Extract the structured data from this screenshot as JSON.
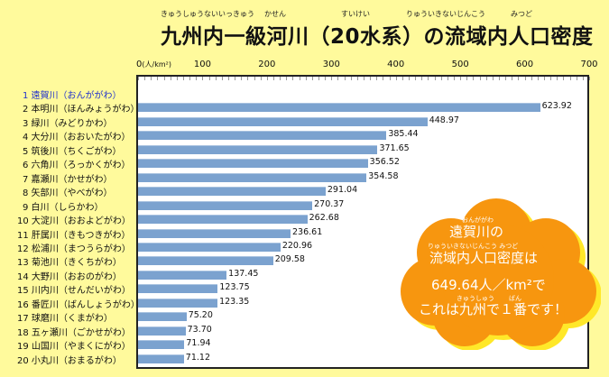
{
  "title": {
    "text": "九州内一級河川（20水系）の流域内人口密度",
    "ruby": [
      {
        "text": "きゅうしゅうないいっきゅう",
        "pos": "a"
      },
      {
        "text": "かせん",
        "pos": "b"
      },
      {
        "text": "すいけい",
        "pos": "c"
      },
      {
        "text": "りゅういきないじんこう",
        "pos": "d"
      },
      {
        "text": "みつど",
        "pos": "e"
      }
    ]
  },
  "callout": {
    "ruby1": "おんががわ",
    "line1": "遠賀川の",
    "ruby2": "りゅういきないじんこう みつど",
    "line2": "流域内人口密度は",
    "line3": "649.64人／km²で",
    "ruby3a": "きゅうしゅう",
    "ruby3b": "ばん",
    "line4": "これは九州で１番です！",
    "color": "#f7960f",
    "shadow_color": "#ffe829"
  },
  "chart_data": {
    "type": "bar",
    "orientation": "horizontal",
    "title": "九州内一級河川（20水系）の流域内人口密度",
    "xlabel": "(人/km²)",
    "xlim": [
      0,
      700
    ],
    "x_ticks": [
      "0",
      "100",
      "200",
      "300",
      "400",
      "500",
      "600",
      "700"
    ],
    "x_unit": "(人/km²)",
    "bar_color": "#7ba2cf",
    "categories": [
      "1 遠賀川（おんががわ）",
      "2 本明川（ほんみょうがわ）",
      "3 緑川（みどりかわ）",
      "4 大分川（おおいたがわ）",
      "5 筑後川（ちくごがわ）",
      "6 六角川（ろっかくがわ）",
      "7 嘉瀬川（かせがわ）",
      "8 矢部川（やべがわ）",
      "9 白川（しらかわ）",
      "10 大淀川（おおよどがわ）",
      "11 肝属川（きもつきがわ）",
      "12 松浦川（まつうらがわ）",
      "13 菊池川（きくちがわ）",
      "14 大野川（おおのがわ）",
      "15 川内川（せんだいがわ）",
      "16 番匠川（ばんしょうがわ）",
      "17 球磨川（くまがわ）",
      "18 五ヶ瀬川（ごかせがわ）",
      "19 山国川（やまくにがわ）",
      "20 小丸川（おまるがわ）"
    ],
    "values": [
      null,
      623.92,
      448.97,
      385.44,
      371.65,
      356.52,
      354.58,
      291.04,
      270.37,
      262.68,
      236.61,
      220.96,
      209.58,
      137.45,
      123.75,
      123.35,
      75.2,
      73.7,
      71.94,
      71.12
    ],
    "value_labels": [
      "",
      "623.92",
      "448.97",
      "385.44",
      "371.65",
      "356.52",
      "354.58",
      "291.04",
      "270.37",
      "262.68",
      "236.61",
      "220.96",
      "209.58",
      "137.45",
      "123.75",
      "123.35",
      "75.20",
      "73.70",
      "71.94",
      "71.12"
    ],
    "highlight_index": 0,
    "highlight_color": "#2233cc",
    "annotation": "遠賀川の流域内人口密度は649.64人／km²でこれは九州で１番です！"
  }
}
